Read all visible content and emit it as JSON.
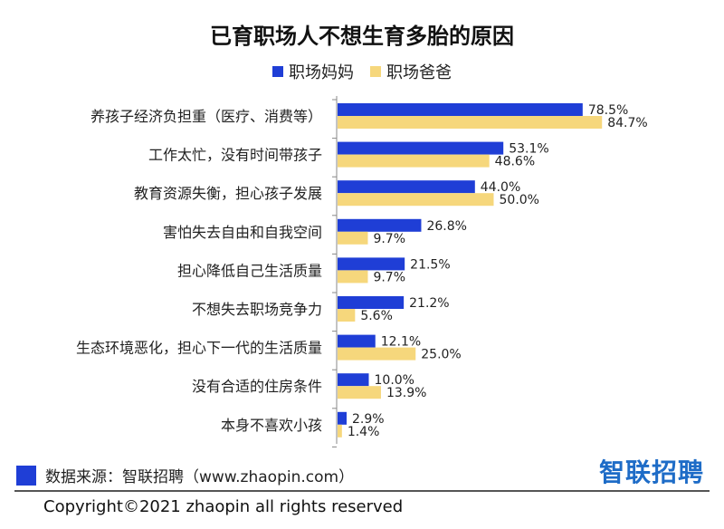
{
  "colors": {
    "mom": "#1f3ed6",
    "dad": "#f6d77c",
    "axis": "#888888",
    "brand_blue": "#1e6cc7"
  },
  "footer": {
    "source": "数据来源：智联招聘（www.zhaopin.com）",
    "logo": "智联招聘",
    "copyright": "Copyright©2021 zhaopin all rights reserved"
  },
  "chart_data": {
    "type": "bar",
    "orientation": "horizontal",
    "title": "已育职场人不想生育多胎的原因",
    "legend_placement": "top-center",
    "grid": false,
    "xlim": [
      0,
      100
    ],
    "categories": [
      "养孩子经济负担重（医疗、消费等）",
      "工作太忙，没有时间带孩子",
      "教育资源失衡，担心孩子发展",
      "害怕失去自由和自我空间",
      "担心降低自己生活质量",
      "不想失去职场竞争力",
      "生态环境恶化，担心下一代的生活质量",
      "没有合适的住房条件",
      "本身不喜欢小孩"
    ],
    "series": [
      {
        "name": "职场妈妈",
        "values": [
          78.5,
          53.1,
          44.0,
          26.8,
          21.5,
          21.2,
          12.1,
          10.0,
          2.9
        ],
        "labels": [
          "78.5%",
          "53.1%",
          "44.0%",
          "26.8%",
          "21.5%",
          "21.2%",
          "12.1%",
          "10.0%",
          "2.9%"
        ]
      },
      {
        "name": "职场爸爸",
        "values": [
          84.7,
          48.6,
          50.0,
          9.7,
          9.7,
          5.6,
          25.0,
          13.9,
          1.4
        ],
        "labels": [
          "84.7%",
          "48.6%",
          "50.0%",
          "9.7%",
          "9.7%",
          "5.6%",
          "25.0%",
          "13.9%",
          "1.4%"
        ]
      }
    ]
  }
}
